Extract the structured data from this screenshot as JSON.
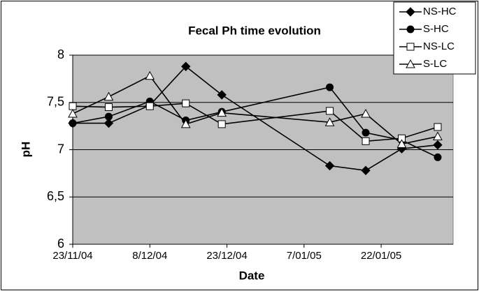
{
  "chart_data": {
    "type": "line",
    "title": "Fecal Ph time evolution",
    "xlabel": "Date",
    "ylabel": "pH",
    "x": [
      "2004-11-23",
      "2004-11-30",
      "2004-12-08",
      "2004-12-15",
      "2004-12-22",
      "2005-01-12",
      "2005-01-19",
      "2005-01-26",
      "2005-02-02"
    ],
    "series": [
      {
        "name": "NS-HC",
        "color": "#000000",
        "marker": "diamond",
        "values": [
          7.28,
          7.28,
          7.47,
          7.88,
          7.58,
          6.83,
          6.78,
          7.01,
          7.05
        ]
      },
      {
        "name": "S-HC",
        "color": "#000000",
        "marker": "circle",
        "values": [
          7.28,
          7.35,
          7.51,
          7.31,
          7.4,
          7.66,
          7.18,
          7.1,
          6.92
        ]
      },
      {
        "name": "NS-LC",
        "color": "#000000",
        "marker": "square",
        "values": [
          7.46,
          7.45,
          7.46,
          7.49,
          7.27,
          7.41,
          7.09,
          7.12,
          7.24
        ]
      },
      {
        "name": "S-LC",
        "color": "#000000",
        "marker": "triangle",
        "values": [
          7.38,
          7.56,
          7.78,
          7.27,
          7.39,
          7.29,
          7.38,
          7.06,
          7.14
        ]
      }
    ],
    "xlim": [
      "2004-11-23",
      "2005-02-05"
    ],
    "xticks": [
      {
        "value": "2004-11-23",
        "label": "23/11/04"
      },
      {
        "value": "2004-12-08",
        "label": "8/12/04"
      },
      {
        "value": "2004-12-23",
        "label": "23/12/04"
      },
      {
        "value": "2005-01-07",
        "label": "7/01/05"
      },
      {
        "value": "2005-01-22",
        "label": "22/01/05"
      }
    ],
    "ylim": [
      6,
      8
    ],
    "yticks": [
      6,
      {
        "value": 6.5,
        "label": "6,5"
      },
      7,
      {
        "value": 7.5,
        "label": "7,5"
      },
      8
    ],
    "grid": true,
    "plot_background": "#c0c0c0",
    "legend": "upper right"
  }
}
